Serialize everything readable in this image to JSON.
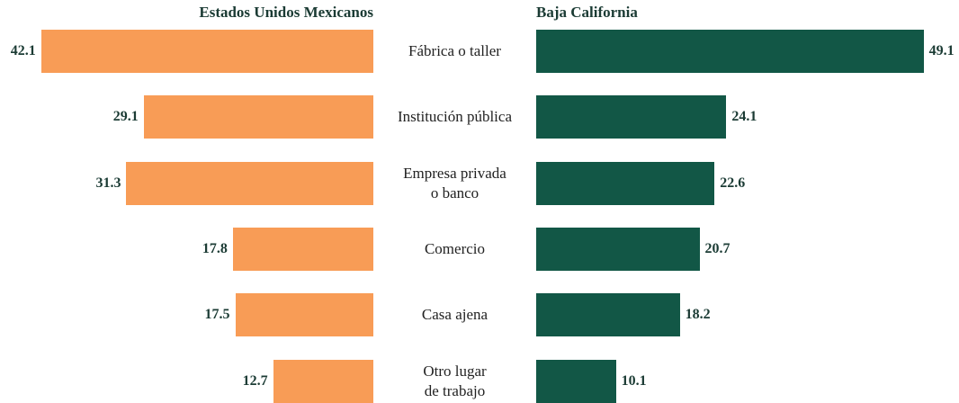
{
  "chart_data": {
    "type": "butterfly",
    "categories": [
      "Fábrica o taller",
      "Institución pública",
      "Empresa privada\no banco",
      "Comercio",
      "Casa ajena",
      "Otro lugar\nde trabajo"
    ],
    "series": [
      {
        "name": "Estados Unidos Mexicanos",
        "color": "#f89c56",
        "values": [
          42.1,
          29.1,
          31.3,
          17.8,
          17.5,
          12.7
        ]
      },
      {
        "name": "Baja California",
        "color": "#125746",
        "values": [
          49.1,
          24.1,
          22.6,
          20.7,
          18.2,
          10.1
        ]
      }
    ]
  }
}
